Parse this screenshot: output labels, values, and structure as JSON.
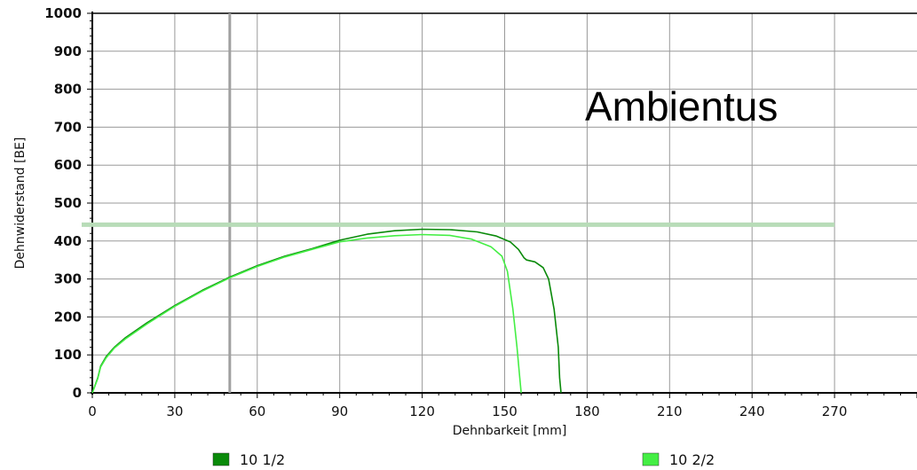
{
  "chart_data": {
    "type": "line",
    "title": "",
    "xlabel": "Dehnbarkeit [mm]",
    "ylabel": "Dehnwiderstand [BE]",
    "xlim": [
      0,
      300
    ],
    "ylim": [
      0,
      1000
    ],
    "x_ticks": [
      "0",
      "30",
      "60",
      "90",
      "120",
      "150",
      "180",
      "210",
      "240",
      "270"
    ],
    "y_ticks": [
      "0",
      "100",
      "200",
      "300",
      "400",
      "500",
      "600",
      "700",
      "800",
      "900",
      "1000"
    ],
    "grid": true,
    "legend_position": "bottom",
    "annotation": "Ambientus",
    "reference_line": {
      "y": 443,
      "x_range": [
        0,
        270
      ],
      "color": "#b8dcb8"
    },
    "vertical_marker": {
      "x": 50,
      "color": "#a0a0a0"
    },
    "series": [
      {
        "name": "10 1/2",
        "color": "#0a8a0a",
        "points": [
          [
            0,
            0
          ],
          [
            2,
            40
          ],
          [
            3,
            70
          ],
          [
            5,
            95
          ],
          [
            8,
            120
          ],
          [
            12,
            145
          ],
          [
            20,
            185
          ],
          [
            30,
            230
          ],
          [
            40,
            270
          ],
          [
            50,
            305
          ],
          [
            60,
            335
          ],
          [
            70,
            360
          ],
          [
            80,
            380
          ],
          [
            90,
            402
          ],
          [
            100,
            418
          ],
          [
            110,
            427
          ],
          [
            120,
            431
          ],
          [
            130,
            430
          ],
          [
            140,
            424
          ],
          [
            147,
            413
          ],
          [
            152,
            398
          ],
          [
            155,
            378
          ],
          [
            157,
            356
          ],
          [
            158,
            350
          ],
          [
            161,
            345
          ],
          [
            164,
            330
          ],
          [
            166,
            300
          ],
          [
            168,
            220
          ],
          [
            169.5,
            120
          ],
          [
            170,
            40
          ],
          [
            170.5,
            0
          ]
        ]
      },
      {
        "name": "10 2/2",
        "color": "#44ee44",
        "points": [
          [
            0,
            0
          ],
          [
            2,
            38
          ],
          [
            3,
            68
          ],
          [
            5,
            92
          ],
          [
            8,
            118
          ],
          [
            12,
            142
          ],
          [
            20,
            182
          ],
          [
            30,
            228
          ],
          [
            40,
            268
          ],
          [
            50,
            303
          ],
          [
            60,
            333
          ],
          [
            70,
            358
          ],
          [
            80,
            378
          ],
          [
            90,
            398
          ],
          [
            100,
            408
          ],
          [
            110,
            414
          ],
          [
            120,
            417
          ],
          [
            130,
            415
          ],
          [
            138,
            405
          ],
          [
            145,
            385
          ],
          [
            149,
            360
          ],
          [
            151,
            320
          ],
          [
            153,
            220
          ],
          [
            154.5,
            120
          ],
          [
            155.5,
            40
          ],
          [
            156,
            0
          ]
        ]
      }
    ]
  }
}
